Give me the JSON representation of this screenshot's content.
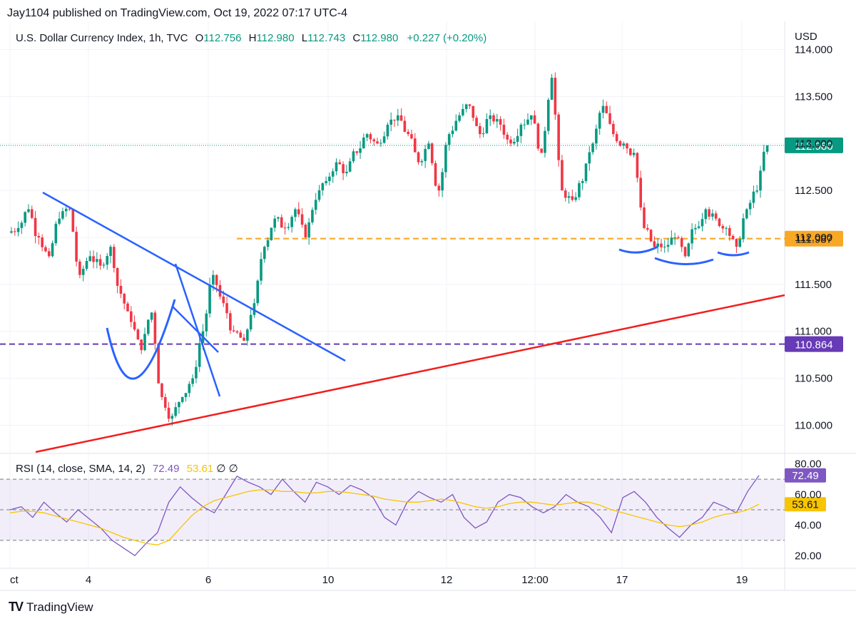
{
  "header": {
    "publisher": "Jay1104 published on TradingView.com, Oct 19, 2022 07:17 UTC-4"
  },
  "legend": {
    "symbol": "U.S. Dollar Currency Index, 1h, TVC",
    "open_label": "O",
    "open": "112.756",
    "high_label": "H",
    "high": "112.980",
    "low_label": "L",
    "low": "112.743",
    "close_label": "C",
    "close": "112.980",
    "change": "+0.227 (+0.20%)"
  },
  "rsi_legend": {
    "label": "RSI (14, close, SMA, 14, 2)",
    "rsi": "72.49",
    "sma": "53.61",
    "extra": "∅ ∅"
  },
  "footer": {
    "brand": "TradingView",
    "logo": "TV"
  },
  "colors": {
    "up": "#089981",
    "down": "#f23645",
    "blue": "#2962ff",
    "red": "#f21d1d",
    "orange": "#f9a825",
    "purple": "#673ab7",
    "rsi": "#7e57c2",
    "sma": "#f7c500"
  },
  "chart_data": [
    {
      "type": "candlestick",
      "title": "U.S. Dollar Currency Index, 1h, TVC",
      "currency": "USD",
      "x_ticks": [
        "ct",
        "4",
        "6",
        "10",
        "12",
        "12:00",
        "17",
        "19"
      ],
      "y_ticks": [
        "110.000",
        "110.500",
        "111.000",
        "111.500",
        "112.000",
        "112.500",
        "113.000",
        "113.500",
        "114.000"
      ],
      "ylim": [
        109.7,
        114.3
      ],
      "last_price": "112.980",
      "levels": [
        {
          "name": "resistance",
          "value": 111.987,
          "label": "111.987",
          "color": "#f9a825",
          "style": "dashed"
        },
        {
          "name": "support",
          "value": 110.864,
          "label": "110.864",
          "color": "#673ab7",
          "style": "dashed"
        }
      ],
      "closes": [
        112.1,
        112.3,
        112.0,
        111.8,
        112.2,
        112.3,
        111.6,
        111.8,
        111.7,
        111.9,
        111.4,
        111.1,
        110.8,
        111.2,
        110.3,
        110.1,
        110.3,
        110.5,
        111.0,
        111.6,
        111.3,
        111.0,
        110.9,
        111.3,
        111.9,
        112.2,
        112.1,
        112.3,
        112.0,
        112.4,
        112.6,
        112.8,
        112.7,
        112.9,
        113.1,
        113.0,
        113.2,
        113.3,
        113.1,
        112.8,
        113.0,
        112.5,
        113.1,
        113.3,
        113.4,
        113.1,
        113.3,
        113.2,
        113.0,
        113.2,
        113.3,
        112.9,
        113.7,
        112.5,
        112.4,
        112.6,
        113.0,
        113.4,
        113.1,
        113.0,
        112.9,
        112.1,
        111.9,
        111.9,
        112.0,
        111.8,
        112.1,
        112.3,
        112.2,
        112.1,
        111.9,
        112.3,
        112.5,
        112.98
      ],
      "trendlines": [
        {
          "name": "downtrend",
          "color": "#2962ff",
          "from": [
            "Oct 3",
            112.6
          ],
          "to": [
            "Oct 10",
            110.7
          ]
        },
        {
          "name": "uptrend",
          "color": "#f21d1d",
          "from": [
            "Oct 3",
            109.8
          ],
          "to": [
            "Oct 19",
            111.4
          ]
        }
      ]
    },
    {
      "type": "line",
      "title": "RSI (14, close, SMA, 14, 2)",
      "y_ticks": [
        "20.00",
        "40.00",
        "60.00",
        "80.00"
      ],
      "ylim": [
        15,
        85
      ],
      "bands": [
        30,
        50,
        70
      ],
      "series": [
        {
          "name": "RSI",
          "color": "#7e57c2",
          "last": "72.49",
          "values": [
            50,
            52,
            45,
            55,
            48,
            42,
            50,
            44,
            38,
            30,
            25,
            20,
            28,
            35,
            55,
            65,
            58,
            52,
            48,
            60,
            72,
            68,
            65,
            60,
            70,
            62,
            55,
            68,
            65,
            60,
            66,
            63,
            58,
            45,
            40,
            55,
            62,
            58,
            55,
            60,
            45,
            38,
            42,
            55,
            60,
            58,
            52,
            48,
            52,
            60,
            55,
            52,
            45,
            35,
            58,
            62,
            55,
            45,
            38,
            32,
            40,
            45,
            55,
            52,
            48,
            62,
            72.49
          ]
        },
        {
          "name": "SMA",
          "color": "#f7c500",
          "last": "53.61",
          "values": [
            48,
            49,
            49,
            48,
            46,
            44,
            42,
            40,
            38,
            35,
            32,
            30,
            28,
            27,
            30,
            38,
            46,
            52,
            56,
            58,
            60,
            62,
            63,
            63,
            62,
            62,
            61,
            61,
            62,
            62,
            61,
            60,
            59,
            57,
            56,
            55,
            55,
            56,
            57,
            56,
            54,
            52,
            51,
            52,
            54,
            55,
            55,
            54,
            53,
            54,
            55,
            55,
            53,
            50,
            48,
            46,
            44,
            42,
            40,
            39,
            40,
            42,
            45,
            47,
            48,
            50,
            53.61
          ]
        }
      ]
    }
  ]
}
